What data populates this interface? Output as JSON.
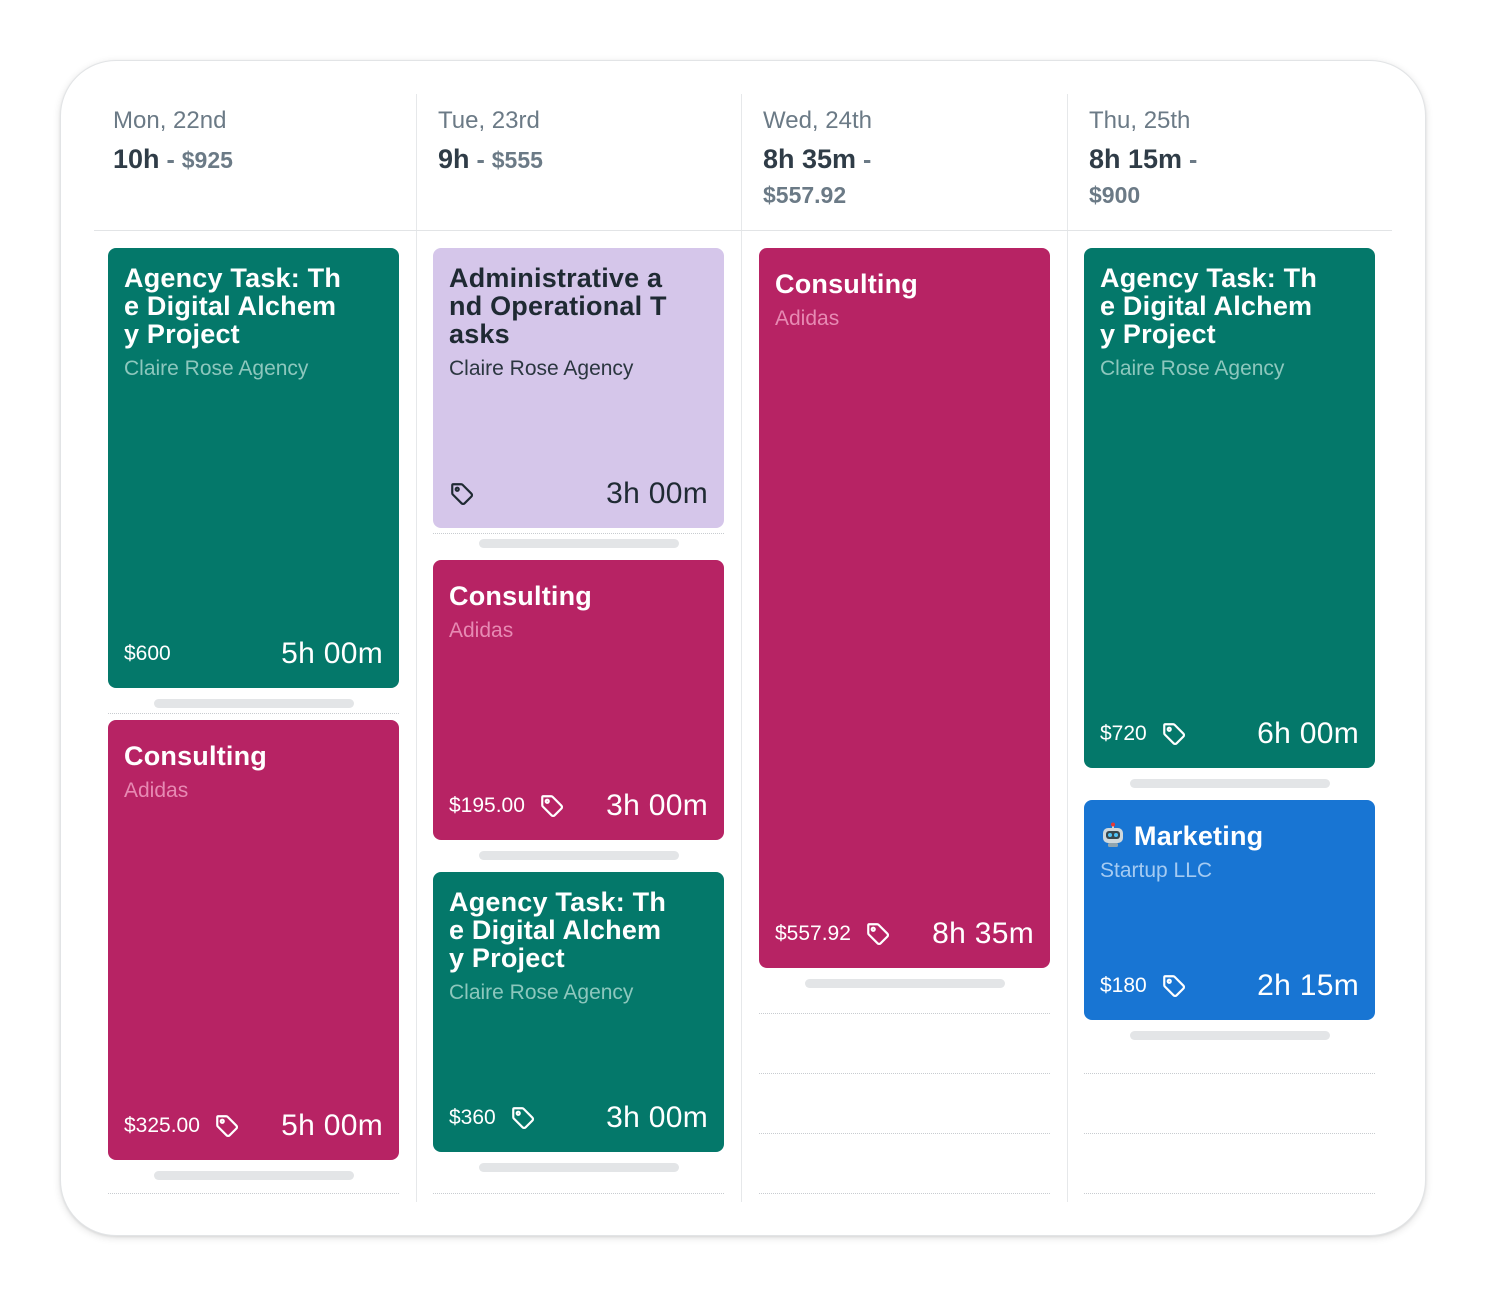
{
  "days": [
    {
      "date": "Mon, 22nd",
      "hours": "10h",
      "sep": " - ",
      "money": "$925"
    },
    {
      "date": "Tue, 23rd",
      "hours": "9h",
      "sep": " - ",
      "money": "$555"
    },
    {
      "date": "Wed, 24th",
      "hours": "8h 35m",
      "sep": " -",
      "money": "$557.92"
    },
    {
      "date": "Thu, 25th",
      "hours": "8h 15m",
      "sep": " -",
      "money": "$900"
    }
  ],
  "entries": {
    "mon_1": {
      "title": "Agency Task: Th\ne Digital Alchem\ny Project",
      "client": "Claire Rose Agency",
      "price": "$600",
      "duration": "5h 00m",
      "color": "#04786a"
    },
    "mon_2": {
      "title": "Consulting",
      "client": "Adidas",
      "price": "$325.00",
      "duration": "5h 00m",
      "color": "#b72364",
      "tag": "tag-icon"
    },
    "tue_1": {
      "title": "Administrative a\nnd Operational T\nasks",
      "client": "Claire Rose Agency",
      "duration": "3h 00m",
      "color": "#d5c6ea",
      "tag": "tag-icon"
    },
    "tue_2": {
      "title": "Consulting",
      "client": "Adidas",
      "price": "$195.00",
      "duration": "3h 00m",
      "color": "#b72364",
      "tag": "tag-icon"
    },
    "tue_3": {
      "title": "Agency Task: Th\ne Digital Alchem\ny Project",
      "client": "Claire Rose Agency",
      "price": "$360",
      "duration": "3h 00m",
      "color": "#04786a",
      "tag": "tag-icon"
    },
    "wed_1": {
      "title": "Consulting",
      "client": "Adidas",
      "price": "$557.92",
      "duration": "8h 35m",
      "color": "#b72364",
      "tag": "tag-icon"
    },
    "thu_1": {
      "title": "Agency Task: Th\ne Digital Alchem\ny Project",
      "client": "Claire Rose Agency",
      "price": "$720",
      "duration": "6h 00m",
      "color": "#04786a",
      "tag": "tag-icon"
    },
    "thu_2": {
      "title": "Marketing",
      "icon": "robot-icon",
      "client": "Startup LLC",
      "price": "$180",
      "duration": "2h 15m",
      "color": "#1875d3",
      "tag": "tag-icon"
    }
  }
}
